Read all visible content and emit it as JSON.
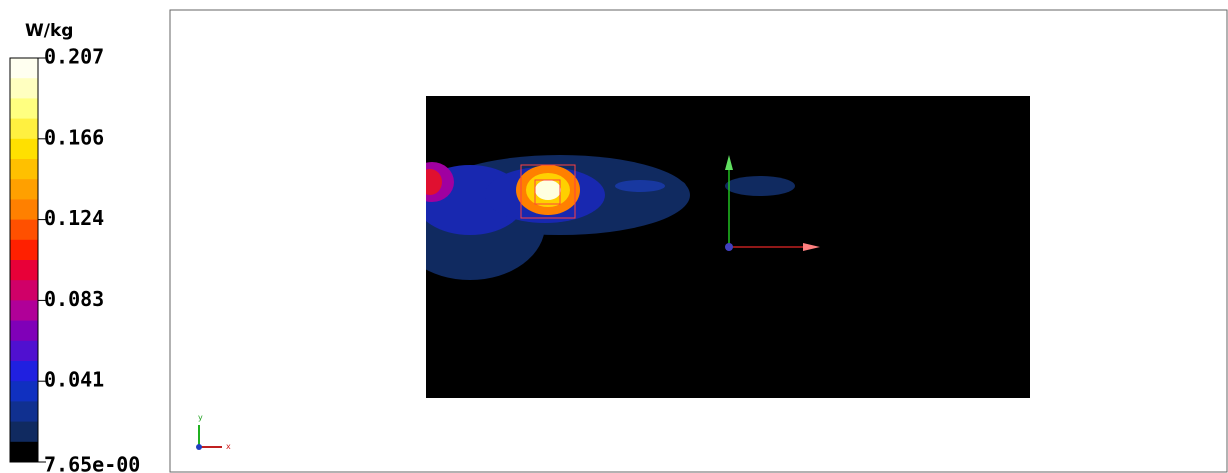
{
  "legend": {
    "unit": "W/kg",
    "labels": [
      "0.207",
      "0.166",
      "0.124",
      "0.083",
      "0.041",
      "7.65e-00"
    ]
  },
  "triad": {
    "y": "y",
    "x": "x"
  }
}
